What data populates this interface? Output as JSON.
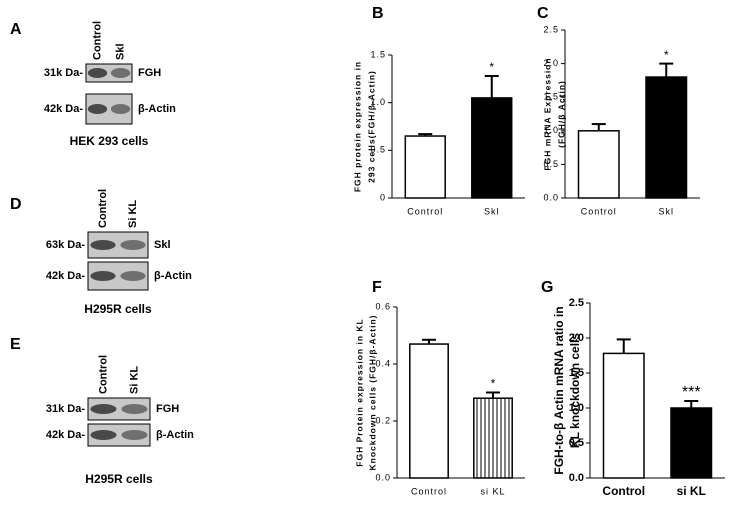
{
  "blots": [
    {
      "label": "A",
      "lanes": [
        "Control",
        "Skl"
      ],
      "rows": [
        {
          "size": "31k Da-",
          "protein": "FGH"
        },
        {
          "size": "42k Da-",
          "protein": "β-Actin"
        }
      ],
      "caption": "HEK 293 cells"
    },
    {
      "label": "D",
      "lanes": [
        "Control",
        "Si KL"
      ],
      "rows": [
        {
          "size": "63k Da-",
          "protein": "Skl"
        },
        {
          "size": "42k Da-",
          "protein": "β-Actin"
        }
      ],
      "caption": "H295R cells"
    },
    {
      "label": "E",
      "lanes": [
        "Control",
        "Si KL"
      ],
      "rows": [
        {
          "size": "31k Da-",
          "protein": "FGH"
        },
        {
          "size": "42k Da-",
          "protein": "β-Actin"
        }
      ],
      "caption": "H295R cells"
    }
  ],
  "chart_data": [
    {
      "type": "bar",
      "label": "B",
      "ylabel": [
        "FGH protein expression in",
        "293 cells(FGH/β-Actin)"
      ],
      "categories": [
        "Control",
        "Skl"
      ],
      "values": [
        0.65,
        1.05
      ],
      "errors": [
        0.02,
        0.23
      ],
      "bar_styles": [
        "open",
        "filled"
      ],
      "annotations": [
        {
          "text": "*",
          "category": "Skl"
        }
      ],
      "ylim": [
        0,
        1.5
      ],
      "yticks": [
        0,
        0.5,
        {
          "value": 1,
          "label": "1.0"
        },
        1.5
      ]
    },
    {
      "type": "bar",
      "label": "C",
      "ylabel": [
        "FGH mRNA Expression",
        "(FGH/β Actin)"
      ],
      "categories": [
        "Control",
        "Skl"
      ],
      "values": [
        1.0,
        1.8
      ],
      "errors": [
        0.1,
        0.2
      ],
      "bar_styles": [
        "open",
        "filled"
      ],
      "annotations": [
        {
          "text": "*",
          "category": "Skl"
        }
      ],
      "ylim": [
        0,
        2.5
      ],
      "yticks": [
        {
          "value": 0,
          "label": "0.0"
        },
        0.5,
        {
          "value": 1,
          "label": "1.0"
        },
        1.5,
        {
          "value": 2,
          "label": "2.0"
        },
        2.5
      ]
    },
    {
      "type": "bar",
      "label": "F",
      "ylabel": [
        "FGH Protein expression in KL",
        "Knockdown cells (FGH/β-Actin)"
      ],
      "categories": [
        "Control",
        "si KL"
      ],
      "values": [
        0.47,
        0.28
      ],
      "errors": [
        0.015,
        0.02
      ],
      "bar_styles": [
        "open",
        "striped"
      ],
      "annotations": [
        {
          "text": "*",
          "category": "si KL"
        }
      ],
      "ylim": [
        0,
        0.6
      ],
      "yticks": [
        {
          "value": 0,
          "label": "0.0"
        },
        0.2,
        0.4,
        0.6
      ]
    },
    {
      "type": "bar",
      "label": "G",
      "ylabel": [
        "FGH-to-β Actin mRNA ratio in",
        "KL knockdown cells"
      ],
      "categories": [
        "Control",
        "si KL"
      ],
      "values": [
        1.78,
        1.0
      ],
      "errors": [
        0.2,
        0.1
      ],
      "bar_styles": [
        "open",
        "filled"
      ],
      "annotations": [
        {
          "text": "***",
          "category": "si KL"
        }
      ],
      "ylim": [
        0,
        2.5
      ],
      "yticks": [
        {
          "value": 0,
          "label": "0.0"
        },
        0.5,
        {
          "value": 1,
          "label": "1.0"
        },
        1.5,
        {
          "value": 2,
          "label": "2.0"
        },
        2.5
      ]
    }
  ]
}
